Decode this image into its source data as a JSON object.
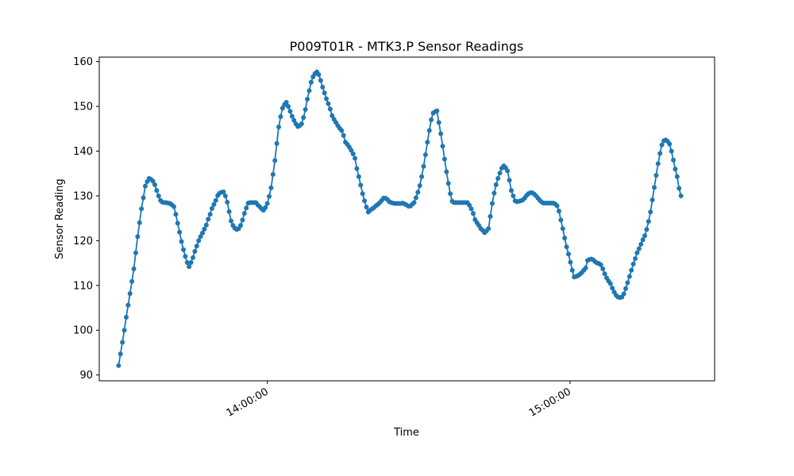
{
  "chart_data": {
    "type": "line",
    "title": "P009T01R - MTK3.P Sensor Readings",
    "xlabel": "Time",
    "ylabel": "Sensor Reading",
    "x_format": "HH:MM:SS",
    "x_range": [
      "13:30:30",
      "15:22:00"
    ],
    "xlim": [
      "13:26:40",
      "15:28:40"
    ],
    "ylim": [
      88.7,
      161.0
    ],
    "y_ticks": [
      90,
      100,
      110,
      120,
      130,
      140,
      150,
      160
    ],
    "x_ticks": [
      "14:00:00",
      "15:00:00"
    ],
    "x_tick_rotation_deg": 30,
    "grid": false,
    "marker": "circle",
    "color": "#1f77b4",
    "series": [
      {
        "values": [
          92.1,
          94.7,
          97.3,
          100.0,
          102.9,
          105.6,
          108.2,
          110.9,
          113.7,
          117.3,
          120.9,
          124.0,
          127.1,
          129.6,
          132.2,
          133.2,
          133.9,
          133.7,
          133.3,
          132.5,
          131.2,
          130.0,
          129.0,
          128.6,
          128.5,
          128.5,
          128.4,
          128.3,
          128.0,
          127.6,
          125.9,
          123.9,
          121.9,
          119.8,
          118.0,
          116.5,
          115.1,
          114.2,
          115.1,
          116.2,
          117.6,
          118.8,
          120.0,
          120.9,
          121.7,
          122.6,
          123.5,
          124.8,
          125.9,
          127.2,
          128.1,
          129.0,
          130.1,
          130.6,
          130.8,
          130.9,
          130.0,
          128.6,
          126.5,
          124.4,
          123.4,
          122.8,
          122.5,
          122.7,
          123.4,
          124.6,
          126.1,
          127.3,
          128.4,
          128.5,
          128.5,
          128.5,
          128.5,
          128.0,
          127.6,
          127.1,
          126.8,
          127.4,
          128.3,
          129.9,
          131.8,
          134.8,
          137.9,
          141.7,
          145.4,
          147.7,
          149.6,
          150.4,
          150.9,
          150.0,
          148.9,
          147.8,
          146.9,
          146.1,
          145.5,
          145.7,
          146.1,
          147.5,
          149.3,
          151.6,
          153.5,
          155.4,
          156.6,
          157.3,
          157.7,
          157.1,
          155.8,
          154.3,
          153.0,
          151.7,
          150.6,
          149.4,
          147.9,
          147.1,
          146.4,
          145.7,
          145.1,
          144.6,
          143.5,
          142.0,
          141.5,
          140.9,
          140.2,
          139.4,
          138.4,
          136.1,
          134.3,
          132.4,
          130.5,
          128.9,
          127.5,
          126.4,
          126.8,
          127.1,
          127.4,
          127.8,
          128.1,
          128.5,
          129.0,
          129.5,
          129.5,
          129.2,
          128.7,
          128.5,
          128.4,
          128.3,
          128.3,
          128.3,
          128.3,
          128.4,
          128.2,
          128.0,
          127.7,
          127.7,
          128.1,
          128.5,
          129.6,
          130.8,
          132.3,
          134.3,
          136.6,
          139.2,
          142.0,
          144.6,
          147.0,
          148.5,
          148.8,
          149.0,
          146.4,
          143.9,
          141.1,
          138.2,
          135.4,
          132.8,
          130.5,
          128.8,
          128.5,
          128.5,
          128.5,
          128.5,
          128.5,
          128.5,
          128.5,
          128.5,
          127.9,
          127.1,
          126.1,
          124.7,
          124.0,
          123.4,
          122.7,
          122.3,
          121.8,
          122.2,
          122.7,
          125.4,
          128.3,
          130.6,
          132.5,
          133.9,
          135.1,
          136.2,
          136.7,
          136.3,
          135.6,
          133.5,
          131.2,
          130.0,
          128.9,
          128.7,
          128.8,
          128.9,
          129.1,
          129.5,
          130.1,
          130.5,
          130.7,
          130.7,
          130.4,
          130.0,
          129.5,
          129.0,
          128.6,
          128.4,
          128.4,
          128.4,
          128.4,
          128.4,
          128.4,
          128.2,
          127.8,
          126.6,
          124.6,
          122.7,
          120.6,
          118.6,
          117.0,
          115.2,
          113.4,
          111.9,
          112.0,
          112.2,
          112.5,
          112.9,
          113.4,
          113.9,
          115.6,
          115.8,
          115.9,
          115.7,
          115.3,
          115.0,
          114.9,
          114.6,
          113.7,
          112.6,
          111.7,
          111.0,
          110.4,
          109.4,
          108.5,
          107.8,
          107.4,
          107.3,
          107.4,
          108.1,
          109.3,
          110.6,
          112.0,
          113.4,
          114.8,
          116.0,
          117.3,
          118.2,
          119.2,
          120.2,
          121.1,
          122.5,
          124.3,
          126.4,
          129.1,
          131.9,
          134.6,
          137.2,
          139.5,
          141.4,
          142.3,
          142.5,
          142.2,
          141.6,
          140.0,
          138.0,
          136.0,
          134.3,
          131.7,
          130.0
        ]
      }
    ]
  }
}
